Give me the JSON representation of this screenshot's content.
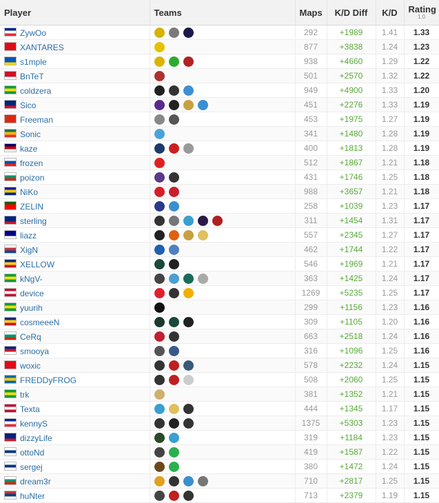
{
  "headers": {
    "player": "Player",
    "teams": "Teams",
    "maps": "Maps",
    "kd_diff": "K/D Diff",
    "kd": "K/D",
    "rating": "Rating",
    "rating_sub": "1.0"
  },
  "rows": [
    {
      "player": "ZywOo",
      "flag": [
        "#002395",
        "#ffffff",
        "#ed2939"
      ],
      "maps": "292",
      "kd_diff": "+1989",
      "kd": "1.41",
      "rating": "1.33",
      "teams": [
        {
          "name": "vitality-logo",
          "color": "#d4b400"
        },
        {
          "name": "alternate-logo",
          "color": "#7a7a7a"
        },
        {
          "name": "ad-logo",
          "color": "#1a1a4a"
        }
      ]
    },
    {
      "player": "XANTARES",
      "flag": [
        "#e30a17",
        "#e30a17",
        "#e30a17"
      ],
      "maps": "877",
      "kd_diff": "+3838",
      "kd": "1.24",
      "rating": "1.23",
      "teams": [
        {
          "name": "space-soldiers-logo",
          "color": "#e5c200"
        }
      ]
    },
    {
      "player": "s1mple",
      "flag": [
        "#0057b7",
        "#0057b7",
        "#ffd700"
      ],
      "maps": "938",
      "kd_diff": "+4660",
      "kd": "1.29",
      "rating": "1.22",
      "teams": [
        {
          "name": "navi-logo",
          "color": "#d9b400"
        },
        {
          "name": "flipsid3-logo",
          "color": "#2faa2f"
        },
        {
          "name": "hellraisers-logo",
          "color": "#b22222"
        }
      ]
    },
    {
      "player": "BnTeT",
      "flag": [
        "#ce1126",
        "#ce1126",
        "#ffffff"
      ],
      "maps": "501",
      "kd_diff": "+2570",
      "kd": "1.32",
      "rating": "1.22",
      "teams": [
        {
          "name": "tyloo-logo",
          "color": "#b03030"
        }
      ]
    },
    {
      "player": "coldzera",
      "flag": [
        "#009c3b",
        "#ffdf00",
        "#009c3b"
      ],
      "maps": "949",
      "kd_diff": "+4900",
      "kd": "1.33",
      "rating": "1.20",
      "teams": [
        {
          "name": "mibr-logo",
          "color": "#222222"
        },
        {
          "name": "sk-logo",
          "color": "#333333"
        },
        {
          "name": "luminosity-logo",
          "color": "#3f8fd0"
        }
      ]
    },
    {
      "player": "Sico",
      "flag": [
        "#00247d",
        "#00247d",
        "#cf142b"
      ],
      "maps": "451",
      "kd_diff": "+2276",
      "kd": "1.33",
      "rating": "1.19",
      "teams": [
        {
          "name": "team-logo-1",
          "color": "#5a2a8a"
        },
        {
          "name": "team-logo-2",
          "color": "#222222"
        },
        {
          "name": "team-logo-3",
          "color": "#c9a040"
        },
        {
          "name": "team-logo-4",
          "color": "#3a8fd0"
        }
      ]
    },
    {
      "player": "Freeman",
      "flag": [
        "#de2910",
        "#de2910",
        "#de2910"
      ],
      "maps": "453",
      "kd_diff": "+1975",
      "kd": "1.27",
      "rating": "1.19",
      "teams": [
        {
          "name": "team-logo-1",
          "color": "#888888"
        },
        {
          "name": "team-logo-2",
          "color": "#555555"
        }
      ]
    },
    {
      "player": "Sonic",
      "flag": [
        "#007a4d",
        "#ffb612",
        "#de3831"
      ],
      "maps": "341",
      "kd_diff": "+1480",
      "kd": "1.28",
      "rating": "1.19",
      "teams": [
        {
          "name": "bravado-logo",
          "color": "#4aa3d8"
        }
      ]
    },
    {
      "player": "kaze",
      "flag": [
        "#010066",
        "#cc0001",
        "#ffffff"
      ],
      "maps": "400",
      "kd_diff": "+1813",
      "kd": "1.28",
      "rating": "1.19",
      "teams": [
        {
          "name": "team-logo-1",
          "color": "#1e3a6a"
        },
        {
          "name": "team-logo-2",
          "color": "#c82020"
        },
        {
          "name": "team-logo-3",
          "color": "#999999"
        }
      ]
    },
    {
      "player": "frozen",
      "flag": [
        "#ffffff",
        "#0b4ea2",
        "#ee1c25"
      ],
      "maps": "512",
      "kd_diff": "+1867",
      "kd": "1.21",
      "rating": "1.18",
      "teams": [
        {
          "name": "team-logo-1",
          "color": "#e02020"
        }
      ]
    },
    {
      "player": "poizon",
      "flag": [
        "#ffffff",
        "#00966e",
        "#d62612"
      ],
      "maps": "431",
      "kd_diff": "+1746",
      "kd": "1.25",
      "rating": "1.18",
      "teams": [
        {
          "name": "team-logo-1",
          "color": "#5a3a8a"
        },
        {
          "name": "team-logo-2",
          "color": "#333333"
        }
      ]
    },
    {
      "player": "NiKo",
      "flag": [
        "#002395",
        "#fecb00",
        "#002395"
      ],
      "maps": "988",
      "kd_diff": "+3657",
      "kd": "1.21",
      "rating": "1.18",
      "teams": [
        {
          "name": "faze-logo",
          "color": "#d81f26"
        },
        {
          "name": "mousesports-logo",
          "color": "#c8202a"
        }
      ]
    },
    {
      "player": "ZELIN",
      "flag": [
        "#006600",
        "#ff0000",
        "#ff0000"
      ],
      "maps": "258",
      "kd_diff": "+1039",
      "kd": "1.23",
      "rating": "1.17",
      "teams": [
        {
          "name": "team-logo-1",
          "color": "#2a3a8a"
        },
        {
          "name": "team-logo-2",
          "color": "#3a8fd0"
        }
      ]
    },
    {
      "player": "sterling",
      "flag": [
        "#00247d",
        "#00247d",
        "#cc142b"
      ],
      "maps": "311",
      "kd_diff": "+1454",
      "kd": "1.31",
      "rating": "1.17",
      "teams": [
        {
          "name": "team-logo-1",
          "color": "#333333"
        },
        {
          "name": "team-logo-2",
          "color": "#777777"
        },
        {
          "name": "team-logo-3",
          "color": "#3aa0d0"
        },
        {
          "name": "team-logo-4",
          "color": "#2a1a4a"
        },
        {
          "name": "team-logo-5",
          "color": "#b02020"
        }
      ]
    },
    {
      "player": "liazz",
      "flag": [
        "#00008b",
        "#00008b",
        "#ffffff"
      ],
      "maps": "557",
      "kd_diff": "+2345",
      "kd": "1.27",
      "rating": "1.17",
      "teams": [
        {
          "name": "team-logo-1",
          "color": "#222222"
        },
        {
          "name": "team-logo-2",
          "color": "#e06010"
        },
        {
          "name": "team-logo-3",
          "color": "#c9a040"
        },
        {
          "name": "team-logo-4",
          "color": "#e0c060"
        }
      ]
    },
    {
      "player": "XigN",
      "flag": [
        "#ffffff",
        "#cd2e3a",
        "#0047a0"
      ],
      "maps": "462",
      "kd_diff": "+1744",
      "kd": "1.22",
      "rating": "1.17",
      "teams": [
        {
          "name": "team-logo-1",
          "color": "#2060b0"
        },
        {
          "name": "team-logo-2",
          "color": "#5080c0"
        }
      ]
    },
    {
      "player": "XELLOW",
      "flag": [
        "#002b7f",
        "#fcd116",
        "#ce1126"
      ],
      "maps": "546",
      "kd_diff": "+1969",
      "kd": "1.21",
      "rating": "1.17",
      "teams": [
        {
          "name": "team-logo-1",
          "color": "#1a4a3a"
        },
        {
          "name": "team-logo-2",
          "color": "#222222"
        }
      ]
    },
    {
      "player": "kNgV-",
      "flag": [
        "#009c3b",
        "#ffdf00",
        "#009c3b"
      ],
      "maps": "363",
      "kd_diff": "+1425",
      "kd": "1.24",
      "rating": "1.17",
      "teams": [
        {
          "name": "team-logo-1",
          "color": "#444444"
        },
        {
          "name": "team-logo-2",
          "color": "#4aa0d0"
        },
        {
          "name": "team-logo-3",
          "color": "#1a6a5a"
        },
        {
          "name": "team-logo-4",
          "color": "#aaaaaa"
        }
      ]
    },
    {
      "player": "device",
      "flag": [
        "#c60c30",
        "#ffffff",
        "#c60c30"
      ],
      "maps": "1269",
      "kd_diff": "+5235",
      "kd": "1.25",
      "rating": "1.17",
      "teams": [
        {
          "name": "astralis-logo",
          "color": "#e02030"
        },
        {
          "name": "tsm-logo",
          "color": "#333333"
        },
        {
          "name": "team-logo-3",
          "color": "#f0b000"
        }
      ]
    },
    {
      "player": "yuurih",
      "flag": [
        "#009c3b",
        "#ffdf00",
        "#009c3b"
      ],
      "maps": "299",
      "kd_diff": "+1156",
      "kd": "1.23",
      "rating": "1.16",
      "teams": [
        {
          "name": "furia-logo",
          "color": "#111111"
        }
      ]
    },
    {
      "player": "cosmeeeN",
      "flag": [
        "#002b7f",
        "#fcd116",
        "#ce1126"
      ],
      "maps": "309",
      "kd_diff": "+1105",
      "kd": "1.20",
      "rating": "1.16",
      "teams": [
        {
          "name": "team-logo-1",
          "color": "#1a3a2a"
        },
        {
          "name": "team-logo-2",
          "color": "#1a4a3a"
        },
        {
          "name": "team-logo-3",
          "color": "#222222"
        }
      ]
    },
    {
      "player": "CeRq",
      "flag": [
        "#ffffff",
        "#00966e",
        "#d62612"
      ],
      "maps": "663",
      "kd_diff": "+2518",
      "kd": "1.24",
      "rating": "1.16",
      "teams": [
        {
          "name": "team-logo-1",
          "color": "#c02030"
        },
        {
          "name": "team-logo-2",
          "color": "#333333"
        }
      ]
    },
    {
      "player": "smooya",
      "flag": [
        "#00247d",
        "#cf142b",
        "#ffffff"
      ],
      "maps": "316",
      "kd_diff": "+1096",
      "kd": "1.25",
      "rating": "1.16",
      "teams": [
        {
          "name": "team-logo-1",
          "color": "#555555"
        },
        {
          "name": "team-logo-2",
          "color": "#3a5a8a"
        }
      ]
    },
    {
      "player": "woxic",
      "flag": [
        "#e30a17",
        "#e30a17",
        "#e30a17"
      ],
      "maps": "578",
      "kd_diff": "+2232",
      "kd": "1.24",
      "rating": "1.15",
      "teams": [
        {
          "name": "team-logo-1",
          "color": "#333333"
        },
        {
          "name": "team-logo-2",
          "color": "#c02020"
        },
        {
          "name": "team-logo-3",
          "color": "#3a5a7a"
        }
      ]
    },
    {
      "player": "FREDDyFROG",
      "flag": [
        "#006aa7",
        "#fecc00",
        "#006aa7"
      ],
      "maps": "508",
      "kd_diff": "+2060",
      "kd": "1.25",
      "rating": "1.15",
      "teams": [
        {
          "name": "team-logo-1",
          "color": "#333333"
        },
        {
          "name": "team-logo-2",
          "color": "#c02020"
        },
        {
          "name": "unknown-team-icon",
          "color": "#cccccc"
        }
      ]
    },
    {
      "player": "trk",
      "flag": [
        "#009c3b",
        "#ffdf00",
        "#009c3b"
      ],
      "maps": "381",
      "kd_diff": "+1352",
      "kd": "1.21",
      "rating": "1.15",
      "teams": [
        {
          "name": "team-logo-1",
          "color": "#d0b070"
        }
      ]
    },
    {
      "player": "Texta",
      "flag": [
        "#c60c30",
        "#ffffff",
        "#c60c30"
      ],
      "maps": "444",
      "kd_diff": "+1345",
      "kd": "1.17",
      "rating": "1.15",
      "teams": [
        {
          "name": "team-logo-1",
          "color": "#3aa0d0"
        },
        {
          "name": "team-logo-2",
          "color": "#e0c060"
        },
        {
          "name": "team-logo-3",
          "color": "#333333"
        }
      ]
    },
    {
      "player": "kennyS",
      "flag": [
        "#002395",
        "#ffffff",
        "#ed2939"
      ],
      "maps": "1375",
      "kd_diff": "+5303",
      "kd": "1.23",
      "rating": "1.15",
      "teams": [
        {
          "name": "g2-logo",
          "color": "#333333"
        },
        {
          "name": "envyus-logo",
          "color": "#222222"
        },
        {
          "name": "titan-logo",
          "color": "#333333"
        }
      ]
    },
    {
      "player": "dizzyLife",
      "flag": [
        "#00247d",
        "#00247d",
        "#cf142b"
      ],
      "maps": "319",
      "kd_diff": "+1184",
      "kd": "1.23",
      "rating": "1.15",
      "teams": [
        {
          "name": "team-logo-1",
          "color": "#2a4a2a"
        },
        {
          "name": "team-logo-2",
          "color": "#3aa0d0"
        }
      ]
    },
    {
      "player": "ottoNd",
      "flag": [
        "#ffffff",
        "#003580",
        "#ffffff"
      ],
      "maps": "419",
      "kd_diff": "+1587",
      "kd": "1.22",
      "rating": "1.15",
      "teams": [
        {
          "name": "team-logo-1",
          "color": "#444444"
        },
        {
          "name": "team-logo-2",
          "color": "#2ab050"
        }
      ]
    },
    {
      "player": "sergej",
      "flag": [
        "#ffffff",
        "#003580",
        "#ffffff"
      ],
      "maps": "380",
      "kd_diff": "+1472",
      "kd": "1.24",
      "rating": "1.15",
      "teams": [
        {
          "name": "team-logo-1",
          "color": "#6a4a1a"
        },
        {
          "name": "team-logo-2",
          "color": "#2ab050"
        }
      ]
    },
    {
      "player": "dream3r",
      "flag": [
        "#ffffff",
        "#00966e",
        "#d62612"
      ],
      "maps": "710",
      "kd_diff": "+2817",
      "kd": "1.25",
      "rating": "1.15",
      "teams": [
        {
          "name": "team-logo-1",
          "color": "#e0a020"
        },
        {
          "name": "team-logo-2",
          "color": "#333333"
        },
        {
          "name": "team-logo-3",
          "color": "#3a8fd0"
        },
        {
          "name": "team-logo-4",
          "color": "#777777"
        }
      ]
    },
    {
      "player": "huNter",
      "flag": [
        "#c6363c",
        "#0c4076",
        "#ffffff"
      ],
      "maps": "713",
      "kd_diff": "+2379",
      "kd": "1.19",
      "rating": "1.15",
      "teams": [
        {
          "name": "team-logo-1",
          "color": "#444444"
        },
        {
          "name": "team-logo-2",
          "color": "#c02020"
        },
        {
          "name": "team-logo-3",
          "color": "#333333"
        }
      ]
    }
  ]
}
